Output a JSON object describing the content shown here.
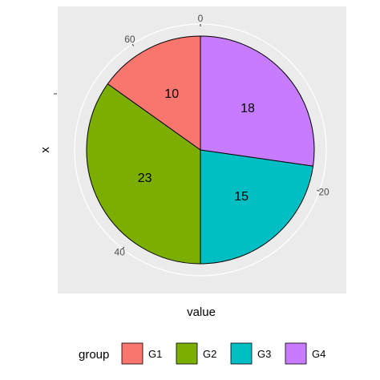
{
  "chart_data": {
    "type": "pie",
    "categories": [
      "G1",
      "G2",
      "G3",
      "G4"
    ],
    "values": [
      10,
      23,
      15,
      18
    ],
    "colors": [
      "#F8766D",
      "#7CAE00",
      "#00BFC4",
      "#C77CFF"
    ],
    "slice_order": [
      "G4",
      "G3",
      "G2",
      "G1"
    ],
    "radial_ticks": [
      "0",
      "20",
      "40",
      "60"
    ],
    "xlabel": "value",
    "ylabel": "x",
    "legend": {
      "title": "group",
      "position": "bottom",
      "items": [
        "G1",
        "G2",
        "G3",
        "G4"
      ]
    },
    "panel_background": "#EBEBEB",
    "grid": true,
    "coord": "polar"
  }
}
